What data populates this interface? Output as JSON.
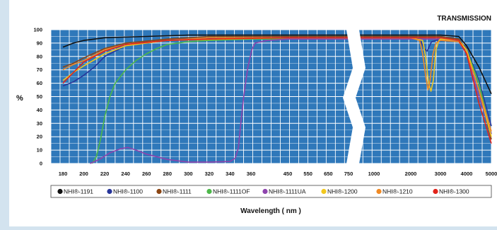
{
  "chart_data": {
    "type": "line",
    "title": "TRANSMISSION",
    "ylabel": "%",
    "xlabel": "Wavelength ( nm )",
    "ylim": [
      0,
      100
    ],
    "yticks": [
      "100",
      "90",
      "80",
      "70",
      "60",
      "50",
      "40",
      "30",
      "20",
      "10",
      "0"
    ],
    "x_scale": "piecewise: 180–450 nm linear, axis break, 500–1000 nm, 2000–5000 nm",
    "xticks": [
      "180",
      "200",
      "220",
      "240",
      "260",
      "280",
      "300",
      "320",
      "340",
      "360",
      "450",
      "550",
      "650",
      "750",
      "1000",
      "2000",
      "3000",
      "4000",
      "5000"
    ],
    "grid": true,
    "background": "#2f78ba",
    "grid_color": "#ffffff",
    "legend_position": "bottom",
    "series": [
      {
        "name": "NHI®-1191",
        "color": "#111111",
        "points": [
          [
            180,
            87
          ],
          [
            190,
            90
          ],
          [
            200,
            92
          ],
          [
            220,
            94
          ],
          [
            260,
            95
          ],
          [
            300,
            96
          ],
          [
            450,
            96
          ],
          [
            2000,
            96
          ],
          [
            3000,
            96
          ],
          [
            3700,
            95
          ],
          [
            4000,
            88
          ],
          [
            4500,
            72
          ],
          [
            5000,
            52
          ]
        ]
      },
      {
        "name": "NHI®-1100",
        "color": "#27359a",
        "points": [
          [
            180,
            58
          ],
          [
            190,
            61
          ],
          [
            200,
            66
          ],
          [
            210,
            72
          ],
          [
            220,
            80
          ],
          [
            240,
            88
          ],
          [
            280,
            92
          ],
          [
            300,
            93
          ],
          [
            450,
            94
          ],
          [
            2000,
            94
          ],
          [
            2300,
            93
          ],
          [
            2450,
            86
          ],
          [
            2550,
            84
          ],
          [
            2700,
            91
          ],
          [
            3000,
            93
          ],
          [
            3700,
            92
          ],
          [
            4000,
            86
          ],
          [
            4500,
            62
          ],
          [
            5000,
            28
          ]
        ]
      },
      {
        "name": "NHI®-1111",
        "color": "#8b4513",
        "points": [
          [
            180,
            72
          ],
          [
            190,
            75
          ],
          [
            200,
            79
          ],
          [
            220,
            86
          ],
          [
            240,
            90
          ],
          [
            280,
            93
          ],
          [
            320,
            95
          ],
          [
            450,
            95
          ],
          [
            2000,
            95
          ],
          [
            3000,
            95
          ],
          [
            3700,
            93
          ],
          [
            4000,
            85
          ],
          [
            4500,
            55
          ],
          [
            5000,
            18
          ]
        ]
      },
      {
        "name": "NHI®-1111OF",
        "color": "#4db84a",
        "points": [
          [
            208,
            0
          ],
          [
            212,
            5
          ],
          [
            216,
            18
          ],
          [
            220,
            35
          ],
          [
            225,
            50
          ],
          [
            230,
            60
          ],
          [
            240,
            70
          ],
          [
            250,
            77
          ],
          [
            260,
            82
          ],
          [
            270,
            86
          ],
          [
            280,
            89
          ],
          [
            300,
            91
          ],
          [
            320,
            92
          ],
          [
            360,
            93
          ],
          [
            450,
            93
          ],
          [
            2000,
            93
          ],
          [
            3000,
            93
          ],
          [
            3700,
            92
          ],
          [
            4000,
            85
          ],
          [
            4500,
            60
          ],
          [
            5000,
            22
          ]
        ]
      },
      {
        "name": "NHI®-1111UA",
        "color": "#8e44ad",
        "points": [
          [
            206,
            0
          ],
          [
            215,
            3
          ],
          [
            225,
            8
          ],
          [
            235,
            11
          ],
          [
            242,
            12
          ],
          [
            250,
            10
          ],
          [
            260,
            7
          ],
          [
            280,
            3
          ],
          [
            300,
            1
          ],
          [
            320,
            1
          ],
          [
            340,
            1.5
          ],
          [
            345,
            4
          ],
          [
            348,
            12
          ],
          [
            350,
            28
          ],
          [
            353,
            50
          ],
          [
            357,
            72
          ],
          [
            362,
            85
          ],
          [
            370,
            90
          ],
          [
            400,
            92
          ],
          [
            450,
            93
          ],
          [
            2000,
            93
          ],
          [
            3000,
            93
          ],
          [
            3700,
            91
          ],
          [
            4000,
            82
          ],
          [
            4500,
            50
          ],
          [
            5000,
            22
          ]
        ]
      },
      {
        "name": "NHI®-1200",
        "color": "#f2c81e",
        "points": [
          [
            180,
            62
          ],
          [
            190,
            68
          ],
          [
            200,
            73
          ],
          [
            220,
            82
          ],
          [
            240,
            88
          ],
          [
            280,
            92
          ],
          [
            450,
            94
          ],
          [
            2000,
            94
          ],
          [
            2400,
            92
          ],
          [
            2500,
            80
          ],
          [
            2600,
            60
          ],
          [
            2680,
            54
          ],
          [
            2760,
            62
          ],
          [
            2850,
            85
          ],
          [
            2950,
            92
          ],
          [
            3000,
            93
          ],
          [
            3700,
            92
          ],
          [
            4000,
            85
          ],
          [
            4500,
            55
          ],
          [
            5000,
            20
          ]
        ]
      },
      {
        "name": "NHI®-1210",
        "color": "#f08a24",
        "points": [
          [
            180,
            70
          ],
          [
            190,
            74
          ],
          [
            200,
            77
          ],
          [
            220,
            85
          ],
          [
            240,
            89
          ],
          [
            280,
            92
          ],
          [
            320,
            94
          ],
          [
            450,
            94
          ],
          [
            2000,
            94
          ],
          [
            2300,
            92
          ],
          [
            2400,
            82
          ],
          [
            2500,
            66
          ],
          [
            2580,
            55
          ],
          [
            2650,
            62
          ],
          [
            2750,
            82
          ],
          [
            2850,
            90
          ],
          [
            3000,
            92
          ],
          [
            3700,
            91
          ],
          [
            4000,
            83
          ],
          [
            4500,
            55
          ],
          [
            5000,
            24
          ]
        ]
      },
      {
        "name": "NHI®-1300",
        "color": "#e2231a",
        "points": [
          [
            180,
            60
          ],
          [
            190,
            68
          ],
          [
            200,
            76
          ],
          [
            220,
            84
          ],
          [
            240,
            89
          ],
          [
            280,
            92
          ],
          [
            320,
            93
          ],
          [
            450,
            94
          ],
          [
            2000,
            94
          ],
          [
            3000,
            94
          ],
          [
            3700,
            92
          ],
          [
            4000,
            82
          ],
          [
            4500,
            45
          ],
          [
            5000,
            15
          ]
        ]
      }
    ]
  }
}
